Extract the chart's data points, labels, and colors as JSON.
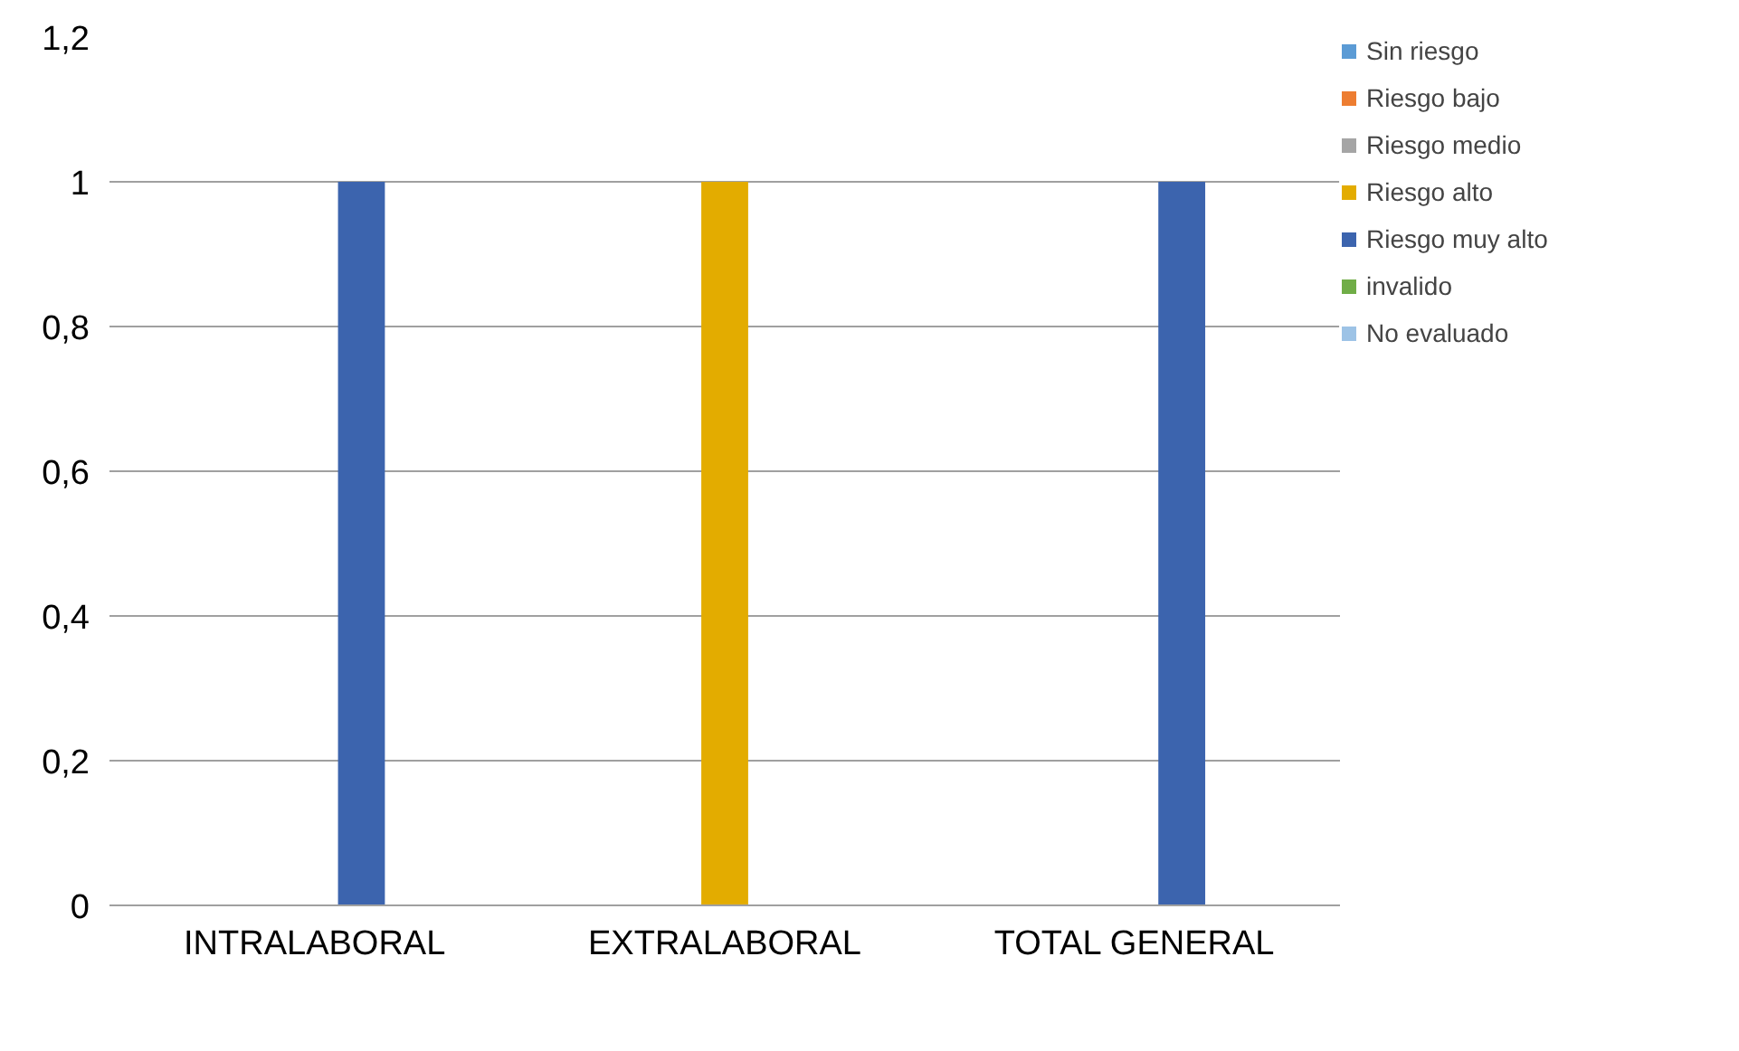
{
  "chart_data": {
    "type": "bar",
    "categories": [
      "INTRALABORAL",
      "EXTRALABORAL",
      "TOTAL GENERAL"
    ],
    "series": [
      {
        "name": "Sin riesgo",
        "color": "#5b9bd5",
        "values": [
          0,
          0,
          0
        ]
      },
      {
        "name": "Riesgo bajo",
        "color": "#ed7d31",
        "values": [
          0,
          0,
          0
        ]
      },
      {
        "name": "Riesgo medio",
        "color": "#a5a5a5",
        "values": [
          0,
          0,
          0
        ]
      },
      {
        "name": "Riesgo alto",
        "color": "#e3ac00",
        "values": [
          0,
          1,
          0
        ]
      },
      {
        "name": "Riesgo muy alto",
        "color": "#3c64ae",
        "values": [
          1,
          0,
          1
        ]
      },
      {
        "name": "invalido",
        "color": "#70ad47",
        "values": [
          0,
          0,
          0
        ]
      },
      {
        "name": "No evaluado",
        "color": "#9dc3e6",
        "values": [
          0,
          0,
          0
        ]
      }
    ],
    "ylim": [
      0,
      1.2
    ],
    "yticks": [
      0,
      {
        "value": 0.2,
        "label": "0,2"
      },
      {
        "value": 0.4,
        "label": "0,4"
      },
      {
        "value": 0.6,
        "label": "0,6"
      },
      {
        "value": 0.8,
        "label": "0,8"
      },
      1,
      {
        "value": 1.2,
        "label": "1,2"
      }
    ],
    "grid": "y",
    "legend": "right"
  }
}
